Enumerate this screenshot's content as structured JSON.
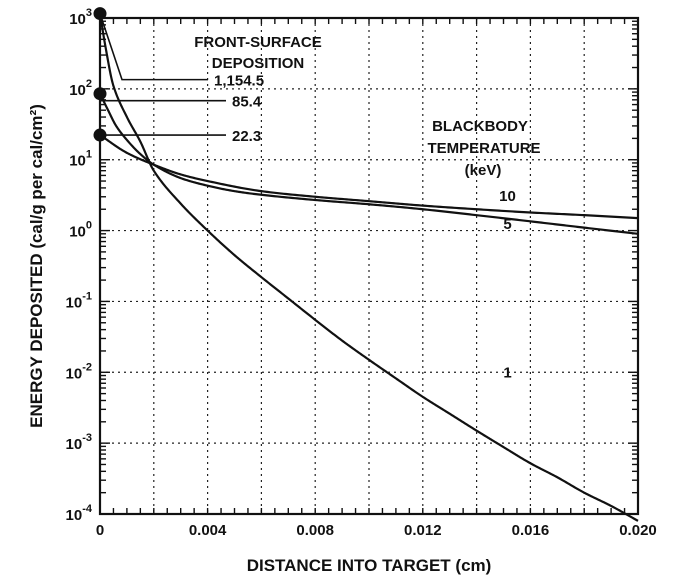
{
  "chart_data": {
    "type": "line",
    "title": "",
    "xlabel": "DISTANCE INTO TARGET (cm)",
    "ylabel": "ENERGY DEPOSITED (cal/g per cal/cm²)",
    "x_scale": "linear",
    "y_scale": "log",
    "xlim": [
      0,
      0.02
    ],
    "ylim": [
      0.0001,
      1000
    ],
    "grid": true,
    "x_ticks": [
      {
        "value": 0,
        "label": "0"
      },
      {
        "value": 0.004,
        "label": "0.004"
      },
      {
        "value": 0.008,
        "label": "0.008"
      },
      {
        "value": 0.012,
        "label": "0.012"
      },
      {
        "value": 0.016,
        "label": "0.016"
      },
      {
        "value": 0.02,
        "label": "0.020"
      }
    ],
    "y_ticks": [
      {
        "value": 1000,
        "base": "10",
        "exp": "3"
      },
      {
        "value": 100,
        "base": "10",
        "exp": "2"
      },
      {
        "value": 10,
        "base": "10",
        "exp": "1"
      },
      {
        "value": 1,
        "base": "10",
        "exp": "0"
      },
      {
        "value": 0.1,
        "base": "10",
        "exp": "-1"
      },
      {
        "value": 0.01,
        "base": "10",
        "exp": "-2"
      },
      {
        "value": 0.001,
        "base": "10",
        "exp": "-3"
      },
      {
        "value": 0.0001,
        "base": "10",
        "exp": "-4"
      }
    ],
    "series": [
      {
        "name": "1",
        "x": [
          0,
          0.0002,
          0.0005,
          0.001,
          0.0015,
          0.002,
          0.003,
          0.004,
          0.005,
          0.006,
          0.007,
          0.008,
          0.009,
          0.01,
          0.011,
          0.012,
          0.013,
          0.014,
          0.015,
          0.016,
          0.017,
          0.018,
          0.019,
          0.02
        ],
        "y": [
          1154.5,
          400,
          110,
          40,
          18,
          7,
          2.4,
          1.0,
          0.45,
          0.22,
          0.11,
          0.055,
          0.028,
          0.015,
          0.0082,
          0.0045,
          0.0026,
          0.0015,
          0.00088,
          0.00052,
          0.00033,
          0.0002,
          0.00013,
          8e-05
        ]
      },
      {
        "name": "5",
        "x": [
          0,
          0.0003,
          0.0006,
          0.001,
          0.0015,
          0.002,
          0.003,
          0.004,
          0.005,
          0.006,
          0.008,
          0.01,
          0.012,
          0.014,
          0.016,
          0.018,
          0.02
        ],
        "y": [
          85.4,
          50,
          30,
          19,
          12,
          8.5,
          5.5,
          4.3,
          3.6,
          3.2,
          2.7,
          2.35,
          2.0,
          1.65,
          1.35,
          1.1,
          0.9
        ]
      },
      {
        "name": "10",
        "x": [
          0,
          0.001,
          0.002,
          0.003,
          0.004,
          0.006,
          0.008,
          0.01,
          0.012,
          0.014,
          0.016,
          0.018,
          0.02
        ],
        "y": [
          22.3,
          12.5,
          8.5,
          6.2,
          5.0,
          3.6,
          3.0,
          2.6,
          2.25,
          2.0,
          1.8,
          1.65,
          1.5
        ]
      }
    ],
    "curve_labels": [
      {
        "text": "10",
        "x": 0.015,
        "y": 2.6
      },
      {
        "text": "5",
        "x": 0.015,
        "y": 1.05
      },
      {
        "text": "1",
        "x": 0.015,
        "y": 0.0085
      }
    ],
    "front_surface": {
      "heading_line1": "FRONT-SURFACE",
      "heading_line2": "DEPOSITION",
      "points": [
        {
          "label": "1,154.5",
          "y": 1154.5,
          "label_y": 135
        },
        {
          "label": "85.4",
          "y": 85.4,
          "label_y": 68
        },
        {
          "label": "22.3",
          "y": 22.3,
          "label_y": 22.3
        }
      ]
    },
    "legend_title_line1": "BLACKBODY",
    "legend_title_line2": "TEMPERATURE",
    "legend_title_line3": "(keV)"
  }
}
